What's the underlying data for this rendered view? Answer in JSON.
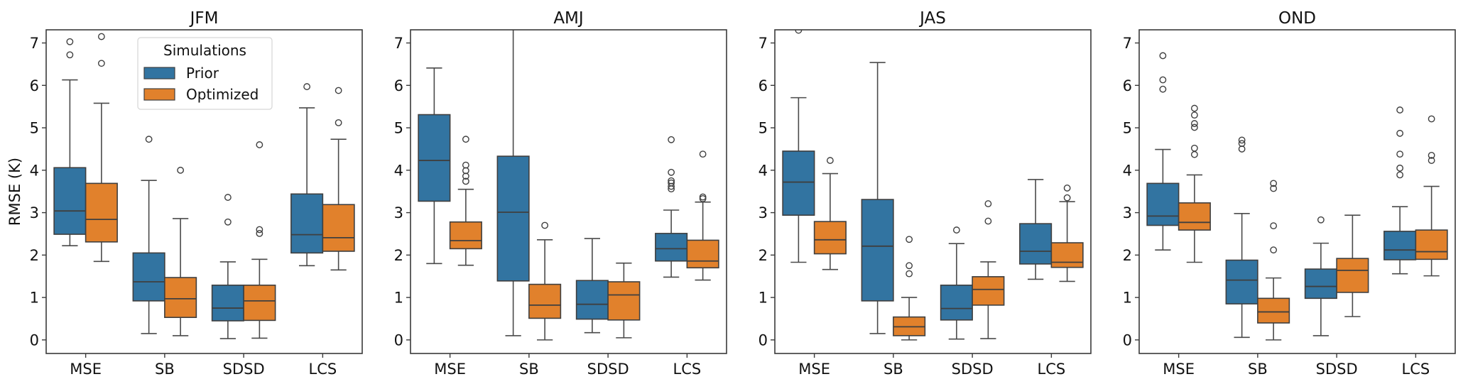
{
  "chart_data": {
    "type": "boxplot",
    "ylabel": "RMSE (K)",
    "ylim": [
      -0.32,
      7.31
    ],
    "yticks": [
      0,
      1,
      2,
      3,
      4,
      5,
      6,
      7
    ],
    "categories": [
      "MSE",
      "SB",
      "SDSD",
      "LCS"
    ],
    "legend": {
      "title": "Simulations",
      "placement": "upper-center (first panel)",
      "entries": [
        {
          "name": "Prior",
          "color": "#3274a1"
        },
        {
          "name": "Optimized",
          "color": "#e1812c"
        }
      ]
    },
    "panels": [
      {
        "title": "JFM",
        "show_ylabel": true,
        "show_legend": true,
        "series": [
          {
            "name": "Prior",
            "boxes": [
              {
                "category": "MSE",
                "whislo": 2.22,
                "q1": 2.49,
                "med": 3.04,
                "q3": 4.06,
                "whishi": 6.13,
                "fliers": [
                  7.03,
                  6.72
                ]
              },
              {
                "category": "SB",
                "whislo": 0.15,
                "q1": 0.92,
                "med": 1.37,
                "q3": 2.05,
                "whishi": 3.76,
                "fliers": [
                  4.73
                ]
              },
              {
                "category": "SDSD",
                "whislo": 0.03,
                "q1": 0.45,
                "med": 0.75,
                "q3": 1.29,
                "whishi": 1.84,
                "fliers": [
                  3.36,
                  2.78
                ]
              },
              {
                "category": "LCS",
                "whislo": 1.75,
                "q1": 2.05,
                "med": 2.48,
                "q3": 3.44,
                "whishi": 5.47,
                "fliers": [
                  5.97
                ]
              }
            ]
          },
          {
            "name": "Optimized",
            "boxes": [
              {
                "category": "MSE",
                "whislo": 1.85,
                "q1": 2.31,
                "med": 2.84,
                "q3": 3.69,
                "whishi": 5.58,
                "fliers": [
                  7.15,
                  6.52
                ]
              },
              {
                "category": "SB",
                "whislo": 0.1,
                "q1": 0.53,
                "med": 0.97,
                "q3": 1.47,
                "whishi": 2.86,
                "fliers": [
                  4.0
                ]
              },
              {
                "category": "SDSD",
                "whislo": 0.04,
                "q1": 0.46,
                "med": 0.92,
                "q3": 1.29,
                "whishi": 1.9,
                "fliers": [
                  4.6,
                  2.6,
                  2.51
                ]
              },
              {
                "category": "LCS",
                "whislo": 1.65,
                "q1": 2.09,
                "med": 2.41,
                "q3": 3.19,
                "whishi": 4.73,
                "fliers": [
                  5.88,
                  5.12
                ]
              }
            ]
          }
        ]
      },
      {
        "title": "AMJ",
        "show_ylabel": false,
        "show_legend": false,
        "series": [
          {
            "name": "Prior",
            "boxes": [
              {
                "category": "MSE",
                "whislo": 1.8,
                "q1": 3.27,
                "med": 4.23,
                "q3": 5.31,
                "whishi": 6.41,
                "fliers": []
              },
              {
                "category": "SB",
                "whislo": 0.1,
                "q1": 1.39,
                "med": 3.01,
                "q3": 4.33,
                "whishi": 7.6,
                "fliers": []
              },
              {
                "category": "SDSD",
                "whislo": 0.17,
                "q1": 0.49,
                "med": 0.84,
                "q3": 1.4,
                "whishi": 2.39,
                "fliers": []
              },
              {
                "category": "LCS",
                "whislo": 1.48,
                "q1": 1.86,
                "med": 2.15,
                "q3": 2.51,
                "whishi": 3.06,
                "fliers": [
                  4.72,
                  3.95,
                  3.75,
                  3.7,
                  3.62,
                  3.56
                ]
              }
            ]
          },
          {
            "name": "Optimized",
            "boxes": [
              {
                "category": "MSE",
                "whislo": 1.76,
                "q1": 2.15,
                "med": 2.34,
                "q3": 2.78,
                "whishi": 3.55,
                "fliers": [
                  4.73,
                  4.12,
                  3.99,
                  3.86,
                  3.74
                ]
              },
              {
                "category": "SB",
                "whislo": 0.0,
                "q1": 0.51,
                "med": 0.82,
                "q3": 1.31,
                "whishi": 2.36,
                "fliers": [
                  2.7
                ]
              },
              {
                "category": "SDSD",
                "whislo": 0.05,
                "q1": 0.47,
                "med": 1.06,
                "q3": 1.37,
                "whishi": 1.81,
                "fliers": []
              },
              {
                "category": "LCS",
                "whislo": 1.41,
                "q1": 1.7,
                "med": 1.86,
                "q3": 2.35,
                "whishi": 3.25,
                "fliers": [
                  4.38,
                  3.37,
                  3.33
                ]
              }
            ]
          }
        ]
      },
      {
        "title": "JAS",
        "show_ylabel": false,
        "show_legend": false,
        "series": [
          {
            "name": "Prior",
            "boxes": [
              {
                "category": "MSE",
                "whislo": 1.83,
                "q1": 2.94,
                "med": 3.72,
                "q3": 4.45,
                "whishi": 5.71,
                "fliers": [
                  7.3
                ]
              },
              {
                "category": "SB",
                "whislo": 0.15,
                "q1": 0.92,
                "med": 2.21,
                "q3": 3.31,
                "whishi": 6.54,
                "fliers": []
              },
              {
                "category": "SDSD",
                "whislo": 0.02,
                "q1": 0.47,
                "med": 0.74,
                "q3": 1.29,
                "whishi": 2.27,
                "fliers": [
                  2.59
                ]
              },
              {
                "category": "LCS",
                "whislo": 1.43,
                "q1": 1.79,
                "med": 2.09,
                "q3": 2.74,
                "whishi": 3.78,
                "fliers": []
              }
            ]
          },
          {
            "name": "Optimized",
            "boxes": [
              {
                "category": "MSE",
                "whislo": 1.66,
                "q1": 2.03,
                "med": 2.36,
                "q3": 2.79,
                "whishi": 3.92,
                "fliers": [
                  4.23
                ]
              },
              {
                "category": "SB",
                "whislo": 0.0,
                "q1": 0.1,
                "med": 0.31,
                "q3": 0.54,
                "whishi": 1.0,
                "fliers": [
                  2.37,
                  1.75,
                  1.56
                ]
              },
              {
                "category": "SDSD",
                "whislo": 0.03,
                "q1": 0.82,
                "med": 1.19,
                "q3": 1.49,
                "whishi": 1.84,
                "fliers": [
                  3.21,
                  2.8
                ]
              },
              {
                "category": "LCS",
                "whislo": 1.38,
                "q1": 1.71,
                "med": 1.83,
                "q3": 2.29,
                "whishi": 3.26,
                "fliers": [
                  3.58,
                  3.35
                ]
              }
            ]
          }
        ]
      },
      {
        "title": "OND",
        "show_ylabel": false,
        "show_legend": false,
        "series": [
          {
            "name": "Prior",
            "boxes": [
              {
                "category": "MSE",
                "whislo": 2.12,
                "q1": 2.7,
                "med": 2.92,
                "q3": 3.69,
                "whishi": 4.49,
                "fliers": [
                  6.7,
                  6.13,
                  5.91
                ]
              },
              {
                "category": "SB",
                "whislo": 0.06,
                "q1": 0.85,
                "med": 1.41,
                "q3": 1.88,
                "whishi": 2.98,
                "fliers": [
                  4.71,
                  4.63,
                  4.5
                ]
              },
              {
                "category": "SDSD",
                "whislo": 0.1,
                "q1": 0.98,
                "med": 1.26,
                "q3": 1.67,
                "whishi": 2.28,
                "fliers": [
                  2.83
                ]
              },
              {
                "category": "LCS",
                "whislo": 1.56,
                "q1": 1.89,
                "med": 2.12,
                "q3": 2.56,
                "whishi": 3.14,
                "fliers": [
                  5.42,
                  4.87,
                  4.38,
                  4.05,
                  3.89
                ]
              }
            ]
          },
          {
            "name": "Optimized",
            "boxes": [
              {
                "category": "MSE",
                "whislo": 1.83,
                "q1": 2.59,
                "med": 2.77,
                "q3": 3.23,
                "whishi": 3.89,
                "fliers": [
                  5.46,
                  5.3,
                  5.1,
                  5.01,
                  4.52,
                  4.37
                ]
              },
              {
                "category": "SB",
                "whislo": 0.0,
                "q1": 0.4,
                "med": 0.66,
                "q3": 0.98,
                "whishi": 1.46,
                "fliers": [
                  3.69,
                  3.57,
                  2.69,
                  2.12
                ]
              },
              {
                "category": "SDSD",
                "whislo": 0.55,
                "q1": 1.12,
                "med": 1.64,
                "q3": 1.92,
                "whishi": 2.94,
                "fliers": []
              },
              {
                "category": "LCS",
                "whislo": 1.51,
                "q1": 1.9,
                "med": 2.08,
                "q3": 2.59,
                "whishi": 3.62,
                "fliers": [
                  5.21,
                  4.35,
                  4.23
                ]
              }
            ]
          }
        ]
      }
    ]
  }
}
